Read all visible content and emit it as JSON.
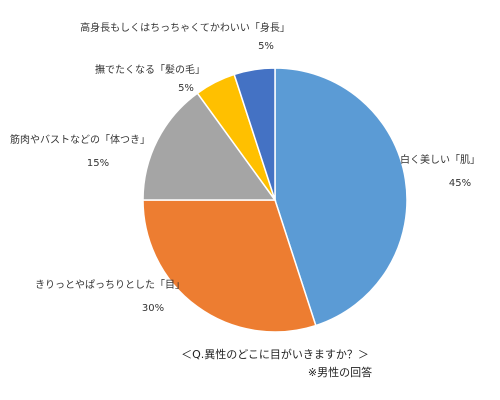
{
  "chart_data": {
    "type": "pie",
    "categories": [
      "白く美しい「肌」",
      "きりっとやぱっちりとした「目」",
      "筋肉やバストなどの「体つき」",
      "撫でたくなる「髪の毛」",
      "高身長もしくはちっちゃくてかわいい「身長」"
    ],
    "values": [
      45,
      30,
      15,
      5,
      5
    ],
    "value_labels": [
      "45%",
      "30%",
      "15%",
      "5%",
      "5%"
    ],
    "colors": [
      "#5b9bd5",
      "#ed7d31",
      "#a5a5a5",
      "#ffc000",
      "#4472c4"
    ],
    "title": "＜Q.異性のどこに目がいきますか？＞",
    "subtitle": "※男性の回答"
  }
}
